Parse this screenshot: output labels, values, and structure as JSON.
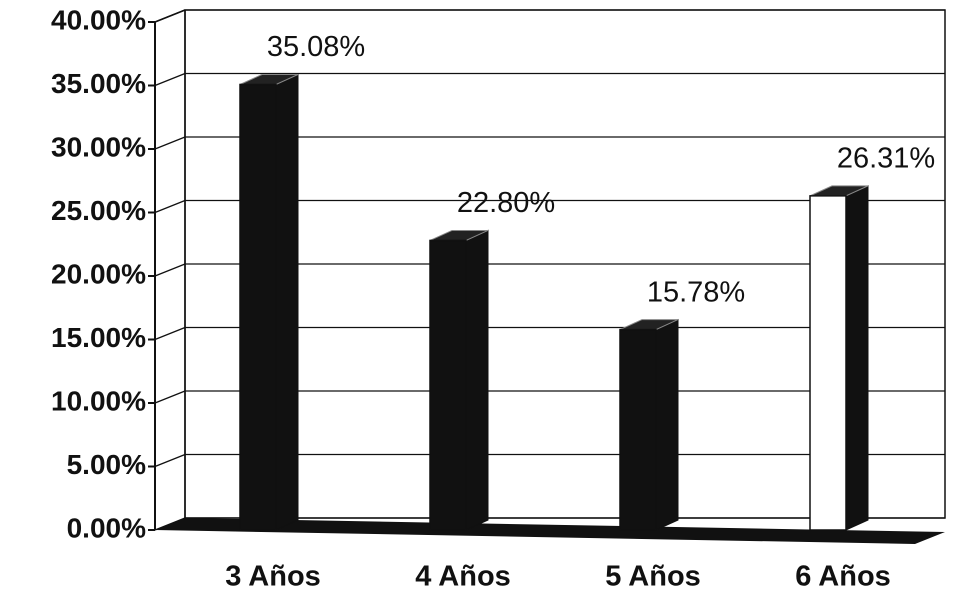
{
  "chart_data": {
    "type": "bar3d",
    "categories": [
      "3 Años",
      "4 Años",
      "5 Años",
      "6 Años"
    ],
    "values": [
      35.08,
      22.8,
      15.78,
      26.31
    ],
    "value_labels": [
      "35.08%",
      "22.80%",
      "15.78%",
      "26.31%"
    ],
    "colors": [
      "#111111",
      "#111111",
      "#111111",
      "#ffffff"
    ],
    "ylim": [
      0,
      40
    ],
    "yticks": [
      {
        "value": 0,
        "label": "0.00%"
      },
      {
        "value": 5,
        "label": "5.00%"
      },
      {
        "value": 10,
        "label": "10.00%"
      },
      {
        "value": 15,
        "label": "15.00%"
      },
      {
        "value": 20,
        "label": "20.00%"
      },
      {
        "value": 25,
        "label": "25.00%"
      },
      {
        "value": 30,
        "label": "30.00%"
      },
      {
        "value": 35,
        "label": "35.00%"
      },
      {
        "value": 40,
        "label": "40.00%"
      }
    ],
    "grid": true
  }
}
